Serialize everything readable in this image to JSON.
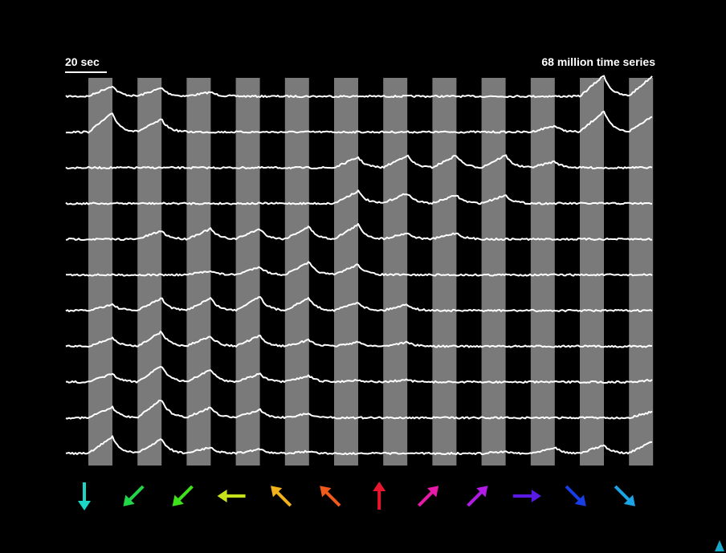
{
  "scale_bar": {
    "label": "20 sec"
  },
  "title": "68 million time series",
  "stimulus": {
    "count": 12,
    "directions": [
      {
        "name": "down",
        "color": "#19d6c6"
      },
      {
        "name": "down-left",
        "color": "#22d64a"
      },
      {
        "name": "down-left",
        "color": "#3ee21a"
      },
      {
        "name": "left",
        "color": "#c6e21a"
      },
      {
        "name": "up-left",
        "color": "#f2b21a"
      },
      {
        "name": "up-left",
        "color": "#f05a1a"
      },
      {
        "name": "up",
        "color": "#e8162e"
      },
      {
        "name": "up-right",
        "color": "#e61aa6"
      },
      {
        "name": "up-right",
        "color": "#b21ae6"
      },
      {
        "name": "right",
        "color": "#5a1ae6"
      },
      {
        "name": "down-right",
        "color": "#1a3ee6"
      },
      {
        "name": "down-right",
        "color": "#1aa6e6"
      }
    ]
  },
  "traces": {
    "count": 11,
    "responses": [
      [
        0.5,
        0.4,
        0.2,
        0.0,
        0.0,
        0.0,
        0.0,
        0.0,
        0.0,
        0.0,
        1.0,
        1.0
      ],
      [
        0.9,
        0.6,
        0.0,
        0.0,
        0.0,
        0.0,
        0.0,
        0.0,
        0.0,
        0.3,
        1.0,
        0.8
      ],
      [
        0.0,
        0.0,
        0.0,
        0.0,
        0.0,
        0.5,
        0.6,
        0.6,
        0.6,
        0.3,
        0.0,
        0.0
      ],
      [
        0.0,
        0.0,
        0.0,
        0.0,
        0.0,
        0.6,
        0.5,
        0.4,
        0.4,
        0.0,
        0.0,
        0.0
      ],
      [
        0.0,
        0.4,
        0.5,
        0.5,
        0.6,
        0.7,
        0.3,
        0.3,
        0.0,
        0.0,
        0.0,
        0.0
      ],
      [
        0.0,
        0.0,
        0.2,
        0.4,
        0.6,
        0.5,
        0.0,
        0.0,
        0.0,
        0.0,
        0.0,
        0.0
      ],
      [
        0.3,
        0.6,
        0.6,
        0.7,
        0.6,
        0.4,
        0.3,
        0.0,
        0.0,
        0.0,
        0.0,
        0.0
      ],
      [
        0.4,
        0.7,
        0.5,
        0.5,
        0.3,
        0.2,
        0.2,
        0.0,
        0.0,
        0.0,
        0.0,
        0.0
      ],
      [
        0.4,
        0.8,
        0.6,
        0.4,
        0.3,
        0.1,
        0.1,
        0.0,
        0.0,
        0.0,
        0.0,
        0.1
      ],
      [
        0.5,
        0.9,
        0.5,
        0.4,
        0.2,
        0.0,
        0.0,
        0.0,
        0.0,
        0.0,
        0.0,
        0.3
      ],
      [
        0.8,
        0.7,
        0.3,
        0.2,
        0.1,
        0.0,
        0.0,
        0.0,
        0.1,
        0.3,
        0.4,
        0.6
      ]
    ]
  }
}
